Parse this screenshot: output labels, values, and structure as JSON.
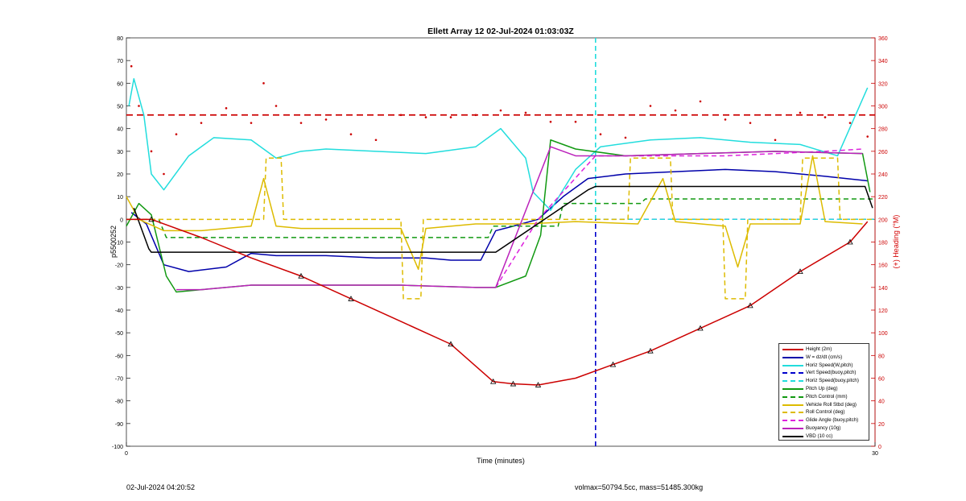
{
  "chart_data": {
    "type": "line",
    "title": "Ellett Array 12 02-Jul-2024 01:03:03Z",
    "xlabel": "Time (minutes)",
    "ylabel": "p5500252",
    "ylabel_right": "(+) Heading (°M)",
    "xlim": [
      0,
      30
    ],
    "ylim": [
      -100,
      80
    ],
    "ylim_right": [
      0,
      360
    ],
    "x_ticks": [
      "0",
      "30"
    ],
    "y_ticks": [
      "80",
      "70",
      "60",
      "50",
      "40",
      "30",
      "20",
      "10",
      "0",
      "-10",
      "-20",
      "-30",
      "-40",
      "-50",
      "-60",
      "-70",
      "-80",
      "-90",
      "-100"
    ],
    "y_ticks_right": [
      "360",
      "340",
      "320",
      "300",
      "280",
      "260",
      "240",
      "220",
      "200",
      "180",
      "160",
      "140",
      "120",
      "100",
      "80",
      "60",
      "40",
      "20",
      "0"
    ],
    "grid": false,
    "legend_placement": "bottom-right",
    "vertical_marker_x": 18.8,
    "series": [
      {
        "name": "Height (2m)",
        "color": "#cc0000",
        "style": "solid",
        "x": [
          0,
          1,
          3,
          5,
          7,
          9,
          11,
          13,
          14.7,
          15.5,
          16.5,
          18,
          19.5,
          21,
          23,
          25,
          27,
          29,
          29.7
        ],
        "y": [
          0,
          0,
          -8,
          -17,
          -25,
          -35,
          -45,
          -55,
          -71.5,
          -72.5,
          -73,
          -70,
          -64,
          -58,
          -48,
          -38,
          -23,
          -10,
          -1
        ]
      },
      {
        "name": "W = dz/dt (cm/s)",
        "color": "#0000aa",
        "style": "solid",
        "x": [
          0.2,
          0.8,
          1.5,
          2.5,
          4,
          5,
          6,
          8,
          10,
          12,
          13,
          14.2,
          14.8,
          15.5,
          16.5,
          17.5,
          18.5,
          20,
          22,
          24,
          26,
          28,
          29.7
        ],
        "y": [
          3,
          -2,
          -20,
          -23,
          -21,
          -15,
          -16,
          -16,
          -17,
          -17,
          -18,
          -18,
          -5,
          -3,
          0,
          10,
          18,
          20,
          21,
          22,
          21,
          19,
          17
        ]
      },
      {
        "name": "Horiz Speed(W,pitch)",
        "color": "#22dddd",
        "style": "solid",
        "x": [
          0.1,
          0.3,
          0.7,
          1,
          1.5,
          2.5,
          3.5,
          5,
          6,
          7,
          8,
          10,
          12,
          14,
          15,
          16,
          16.3,
          17,
          18,
          19,
          21,
          23,
          25,
          27,
          28.5,
          29.7
        ],
        "y": [
          50,
          62,
          46,
          20,
          13,
          28,
          36,
          35,
          27,
          30,
          31,
          30,
          29,
          32,
          40,
          27,
          12,
          4,
          22,
          32,
          35,
          36,
          34,
          33,
          28,
          58
        ]
      },
      {
        "name": "Vert Speed(buoy,pitch)",
        "color": "#0000cc",
        "style": "dashed",
        "x": [
          18.8,
          20,
          30
        ],
        "y": [
          0,
          0,
          0
        ]
      },
      {
        "name": "Horiz Speed(buoy,pitch)",
        "color": "#22dddd",
        "style": "dashed",
        "x": [
          18.8,
          30
        ],
        "y": [
          0,
          0
        ]
      },
      {
        "name": "Pitch Up (deg)",
        "color": "#119911",
        "style": "solid",
        "x": [
          0,
          0.5,
          1,
          1.6,
          2,
          3,
          5,
          8,
          11,
          14,
          14.8,
          16,
          16.6,
          17,
          18,
          20,
          23,
          26,
          29.5,
          29.8
        ],
        "y": [
          -3,
          7,
          2,
          -25,
          -32,
          -31,
          -29,
          -29,
          -29,
          -30,
          -30,
          -25,
          -7,
          35,
          31,
          28,
          29,
          30,
          29,
          12
        ]
      },
      {
        "name": "Pitch Control (mm)",
        "color": "#119911",
        "style": "dashed",
        "x": [
          0,
          1.3,
          1.6,
          14.5,
          14.7,
          17.3,
          17.5,
          20.6,
          20.8,
          30
        ],
        "y": [
          0,
          0,
          -8,
          -8,
          -3,
          -3,
          7,
          7,
          9,
          9
        ]
      },
      {
        "name": "Vehicle Roll Stbd (deg)",
        "color": "#ddbb00",
        "style": "solid",
        "x": [
          0,
          0.5,
          1.5,
          3,
          5,
          5.5,
          6,
          7,
          10,
          11,
          11.7,
          12,
          14,
          16,
          18,
          20.5,
          21.5,
          22,
          24,
          24.5,
          25,
          27,
          27.5,
          28,
          29.5
        ],
        "y": [
          10,
          0,
          -5,
          -5,
          -3,
          18,
          -3,
          -4,
          -4,
          -4,
          -22,
          -4,
          -2,
          -2,
          -1,
          -2,
          18,
          -1,
          -3,
          -21,
          -2,
          -2,
          28,
          -1,
          -2
        ]
      },
      {
        "name": "Roll Control (deg)",
        "color": "#ddbb00",
        "style": "dashed",
        "x": [
          0,
          5.5,
          5.6,
          6.2,
          6.3,
          11,
          11.1,
          11.8,
          11.9,
          20.1,
          20.2,
          21.8,
          21.9,
          23.9,
          24,
          24.8,
          24.9,
          27,
          27.1,
          28.5,
          28.6,
          30
        ],
        "y": [
          0,
          0,
          27,
          27,
          0,
          0,
          -35,
          -35,
          0,
          0,
          27,
          27,
          0,
          0,
          -35,
          -35,
          0,
          0,
          27,
          27,
          0,
          0
        ]
      },
      {
        "name": "Glide Angle (buoy,pitch)",
        "color": "#dd22dd",
        "style": "dashed",
        "x": [
          14.8,
          16.5,
          18.8,
          20,
          24,
          28,
          29.5
        ],
        "y": [
          -30,
          0,
          28,
          28,
          28,
          30,
          31
        ]
      },
      {
        "name": "Buoyancy (10g)",
        "color": "#bb22bb",
        "style": "solid",
        "x": [
          2,
          3,
          5,
          8,
          11,
          14,
          14.8,
          17,
          18,
          20,
          23,
          26,
          29.5
        ],
        "y": [
          -31,
          -31,
          -29,
          -29,
          -29,
          -30,
          -30,
          32,
          28,
          28,
          29,
          30,
          29
        ]
      },
      {
        "name": "VBD (10 cc)",
        "color": "#000000",
        "style": "solid",
        "x": [
          0.3,
          0.9,
          1,
          14.8,
          18.5,
          18.8,
          29.6,
          29.9
        ],
        "y": [
          5,
          -13,
          -14.5,
          -14.5,
          13,
          14.5,
          14.5,
          5
        ]
      }
    ],
    "heading_series": {
      "name": "(+) Heading (°M)",
      "axis": "right",
      "color": "#cc0000",
      "style": "dotted",
      "mean": 292,
      "x": [
        0.2,
        0.5,
        1,
        1.5,
        2,
        3,
        4,
        5,
        5.5,
        6,
        7,
        8,
        9,
        10,
        11,
        12,
        13,
        14,
        15,
        16,
        17,
        18,
        19,
        20,
        21,
        22,
        23,
        24,
        25,
        26,
        27,
        28,
        29,
        29.7
      ],
      "y": [
        335,
        300,
        260,
        240,
        275,
        285,
        298,
        285,
        320,
        300,
        285,
        288,
        275,
        270,
        292,
        290,
        290,
        292,
        296,
        294,
        286,
        286,
        275,
        272,
        300,
        296,
        304,
        288,
        285,
        270,
        294,
        290,
        285,
        273
      ]
    }
  },
  "footer": {
    "left": "02-Jul-2024 04:20:52",
    "right": "volmax=50794.5cc, mass=51485.300kg"
  }
}
